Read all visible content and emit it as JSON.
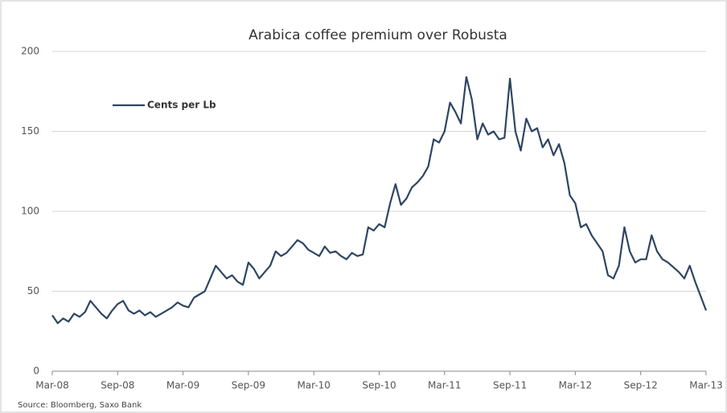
{
  "chart_data": {
    "type": "line",
    "title": "Arabica coffee premium over Robusta",
    "source": "Source: Bloomberg, Saxo Bank",
    "categories": [
      "Mar-08",
      null,
      null,
      null,
      null,
      null,
      null,
      null,
      null,
      null,
      null,
      null,
      "Sep-08",
      null,
      null,
      null,
      null,
      null,
      null,
      null,
      null,
      null,
      null,
      null,
      "Mar-09",
      null,
      null,
      null,
      null,
      null,
      null,
      null,
      null,
      null,
      null,
      null,
      "Sep-09",
      null,
      null,
      null,
      null,
      null,
      null,
      null,
      null,
      null,
      null,
      null,
      "Mar-10",
      null,
      null,
      null,
      null,
      null,
      null,
      null,
      null,
      null,
      null,
      null,
      "Sep-10",
      null,
      null,
      null,
      null,
      null,
      null,
      null,
      null,
      null,
      null,
      null,
      "Mar-11",
      null,
      null,
      null,
      null,
      null,
      null,
      null,
      null,
      null,
      null,
      null,
      "Sep-11",
      null,
      null,
      null,
      null,
      null,
      null,
      null,
      null,
      null,
      null,
      null,
      "Mar-12",
      null,
      null,
      null,
      null,
      null,
      null,
      null,
      null,
      null,
      null,
      null,
      "Sep-12",
      null,
      null,
      null,
      null,
      null,
      null,
      null,
      null,
      null,
      null,
      null,
      "Mar-13"
    ],
    "series": [
      {
        "name": "Cents per Lb",
        "color": "#2e4562",
        "values": [
          35,
          30,
          33,
          31,
          36,
          34,
          37,
          44,
          40,
          36,
          33,
          38,
          42,
          44,
          38,
          36,
          38,
          35,
          37,
          34,
          36,
          38,
          40,
          43,
          41,
          40,
          46,
          48,
          50,
          58,
          66,
          62,
          58,
          60,
          56,
          54,
          68,
          64,
          58,
          62,
          66,
          75,
          72,
          74,
          78,
          82,
          80,
          76,
          74,
          72,
          78,
          74,
          75,
          72,
          70,
          74,
          72,
          73,
          90,
          88,
          92,
          90,
          105,
          117,
          104,
          108,
          115,
          118,
          122,
          128,
          145,
          143,
          150,
          168,
          162,
          155,
          184,
          170,
          145,
          155,
          148,
          150,
          145,
          146,
          183,
          150,
          138,
          158,
          150,
          152,
          140,
          145,
          135,
          142,
          130,
          110,
          105,
          90,
          92,
          85,
          80,
          75,
          60,
          58,
          66,
          90,
          75,
          68,
          70,
          70,
          85,
          75,
          70,
          68,
          65,
          62,
          58,
          66,
          56,
          47,
          38
        ]
      }
    ],
    "ylim": [
      0,
      200
    ],
    "yticks": [
      0,
      50,
      100,
      150,
      200
    ],
    "grid": true,
    "legend": "upper left"
  }
}
